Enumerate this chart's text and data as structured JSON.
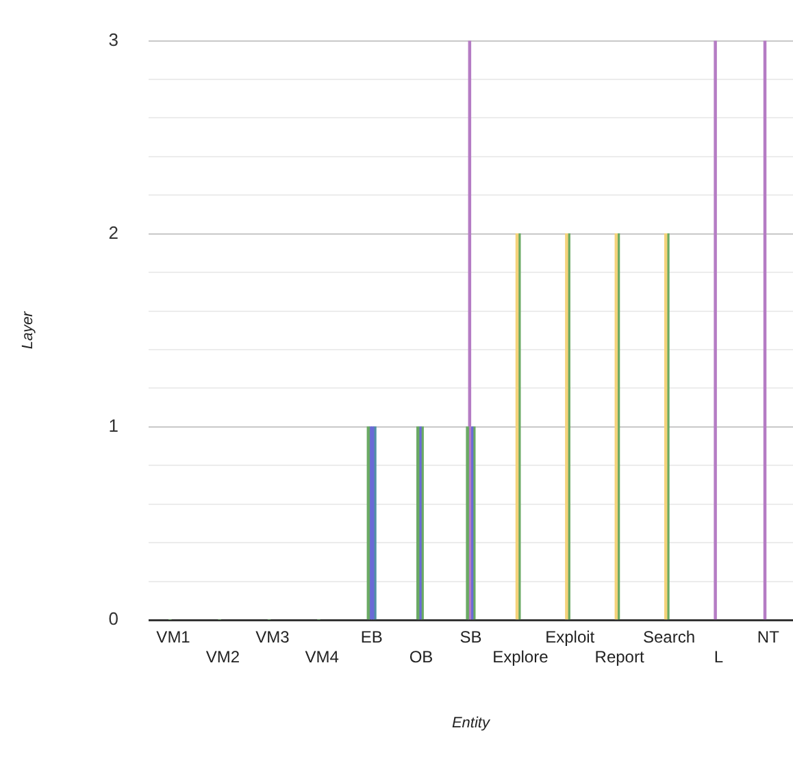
{
  "chart_data": {
    "type": "bar",
    "xlabel": "Entity",
    "ylabel": "Layer",
    "categories": [
      "VM1",
      "VM2",
      "VM3",
      "VM4",
      "EB",
      "OB",
      "SB",
      "Explore",
      "Exploit",
      "Report",
      "Search",
      "L",
      "NT"
    ],
    "series": [
      {
        "values": [
          0,
          0,
          0,
          0,
          1,
          1,
          1,
          2,
          2,
          2,
          2,
          3,
          3
        ],
        "colors": [
          "#6aaa64",
          "#6aaa64",
          "#6aaa64",
          "#6aaa64",
          "#6aaa64",
          "#6aaa64",
          "#6aaa64",
          "#f4d27a",
          "#f4d27a",
          "#f4d27a",
          "#f4d27a",
          "#b57cc4",
          "#b57cc4"
        ]
      },
      {
        "values": [
          null,
          null,
          null,
          null,
          1,
          1,
          3,
          2,
          2,
          2,
          2,
          null,
          null
        ],
        "colors": [
          "#6a6ad6",
          "#6a6ad6",
          "#6a6ad6",
          "#6a6ad6",
          "#6a6ad6",
          "#6a6ad6",
          "#b57cc4",
          "#6aaa64",
          "#6aaa64",
          "#6aaa64",
          "#6aaa64",
          "#6a6ad6",
          "#6a6ad6"
        ]
      },
      {
        "values": [
          null,
          null,
          null,
          null,
          1,
          1,
          1,
          null,
          null,
          null,
          null,
          null,
          null
        ],
        "colors": [
          "#6a6ad6",
          "#6a6ad6",
          "#6a6ad6",
          "#6a6ad6",
          "#6a6ad6",
          "#6aaa64",
          "#6a6ad6",
          "#6a6ad6",
          "#6a6ad6",
          "#6a6ad6",
          "#6a6ad6",
          "#6a6ad6",
          "#6a6ad6"
        ]
      },
      {
        "values": [
          null,
          null,
          null,
          null,
          1,
          null,
          1,
          null,
          null,
          null,
          null,
          null,
          null
        ],
        "colors": [
          "#4f8fa6",
          "#4f8fa6",
          "#4f8fa6",
          "#4f8fa6",
          "#4f8fa6",
          "#6aaa64",
          "#6aaa64",
          "#6aaa64",
          "#6aaa64",
          "#6aaa64",
          "#6aaa64",
          "#6aaa64",
          "#6aaa64"
        ]
      }
    ],
    "ylim": [
      0,
      3
    ],
    "yticks": [
      0,
      {
        "value": 0.2,
        "label": null
      },
      {
        "value": 0.4,
        "label": null
      },
      {
        "value": 0.6,
        "label": null
      },
      {
        "value": 0.8,
        "label": null
      },
      1,
      {
        "value": 1.2,
        "label": null
      },
      {
        "value": 1.4,
        "label": null
      },
      {
        "value": 1.6,
        "label": null
      },
      {
        "value": 1.8,
        "label": null
      },
      2,
      {
        "value": 2.2,
        "label": null
      },
      {
        "value": 2.4,
        "label": null
      },
      {
        "value": 2.6,
        "label": null
      },
      {
        "value": 2.8,
        "label": null
      },
      3
    ],
    "grid": "y",
    "legend": false
  }
}
